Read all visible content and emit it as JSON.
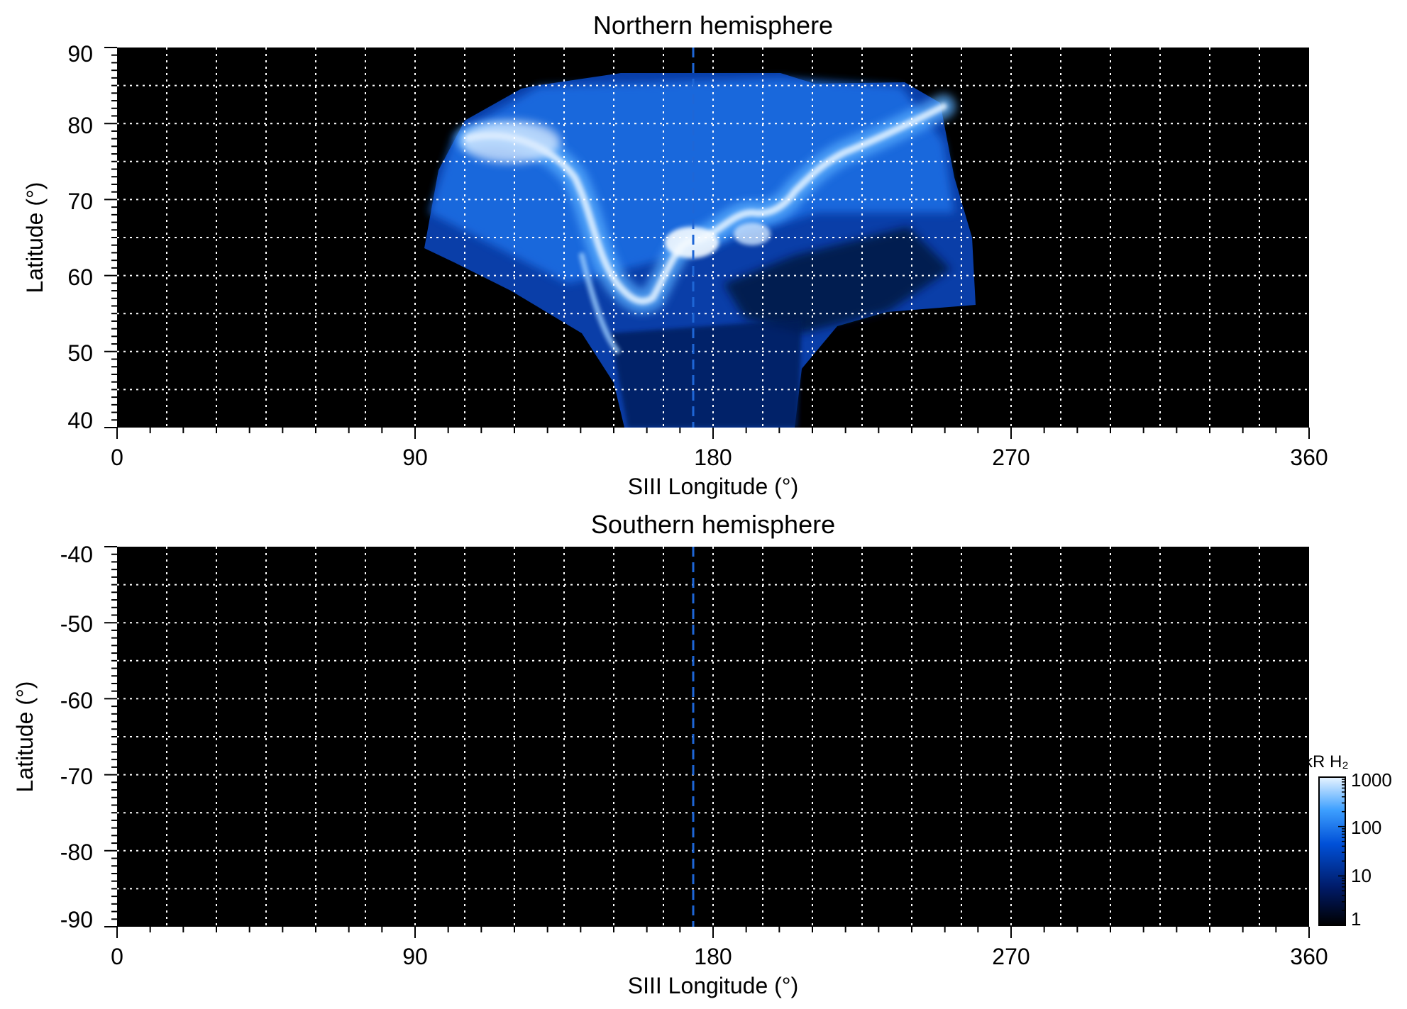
{
  "chart_data": [
    {
      "type": "heatmap",
      "title": "Northern hemisphere",
      "xlabel": "SIII Longitude (°)",
      "ylabel": "Latitude (°)",
      "xlim": [
        0,
        360
      ],
      "ylim": [
        40,
        90
      ],
      "xticks": [
        "0",
        "90",
        "180",
        "270",
        "360"
      ],
      "yticks": [
        "40",
        "50",
        "60",
        "70",
        "80",
        "90"
      ],
      "grid": true,
      "reference_longitude": 174,
      "emission_region": {
        "longitude_range": [
          90,
          258
        ],
        "latitude_range": [
          40,
          86
        ],
        "main_oval_peak_latitude": 64,
        "peak_intensity_kR": 1000
      }
    },
    {
      "type": "heatmap",
      "title": "Southern hemisphere",
      "xlabel": "SIII Longitude (°)",
      "ylabel": "Latitude (°)",
      "xlim": [
        0,
        360
      ],
      "ylim": [
        -90,
        -40
      ],
      "xticks": [
        "0",
        "90",
        "180",
        "270",
        "360"
      ],
      "yticks": [
        "-40",
        "-50",
        "-60",
        "-70",
        "-80",
        "-90"
      ],
      "grid": true,
      "reference_longitude": 174
    }
  ],
  "colorbar": {
    "label": "kR H₂",
    "scale": "log",
    "range": [
      1,
      1000
    ],
    "ticks": [
      "1",
      "10",
      "100",
      "1000"
    ],
    "colors": [
      "#000000",
      "#001a66",
      "#0050d8",
      "#3ea0ff",
      "#e8f4ff"
    ]
  },
  "colors": {
    "background": "#000000",
    "grid": "#ffffff",
    "reference_line": "#1e66d6"
  }
}
